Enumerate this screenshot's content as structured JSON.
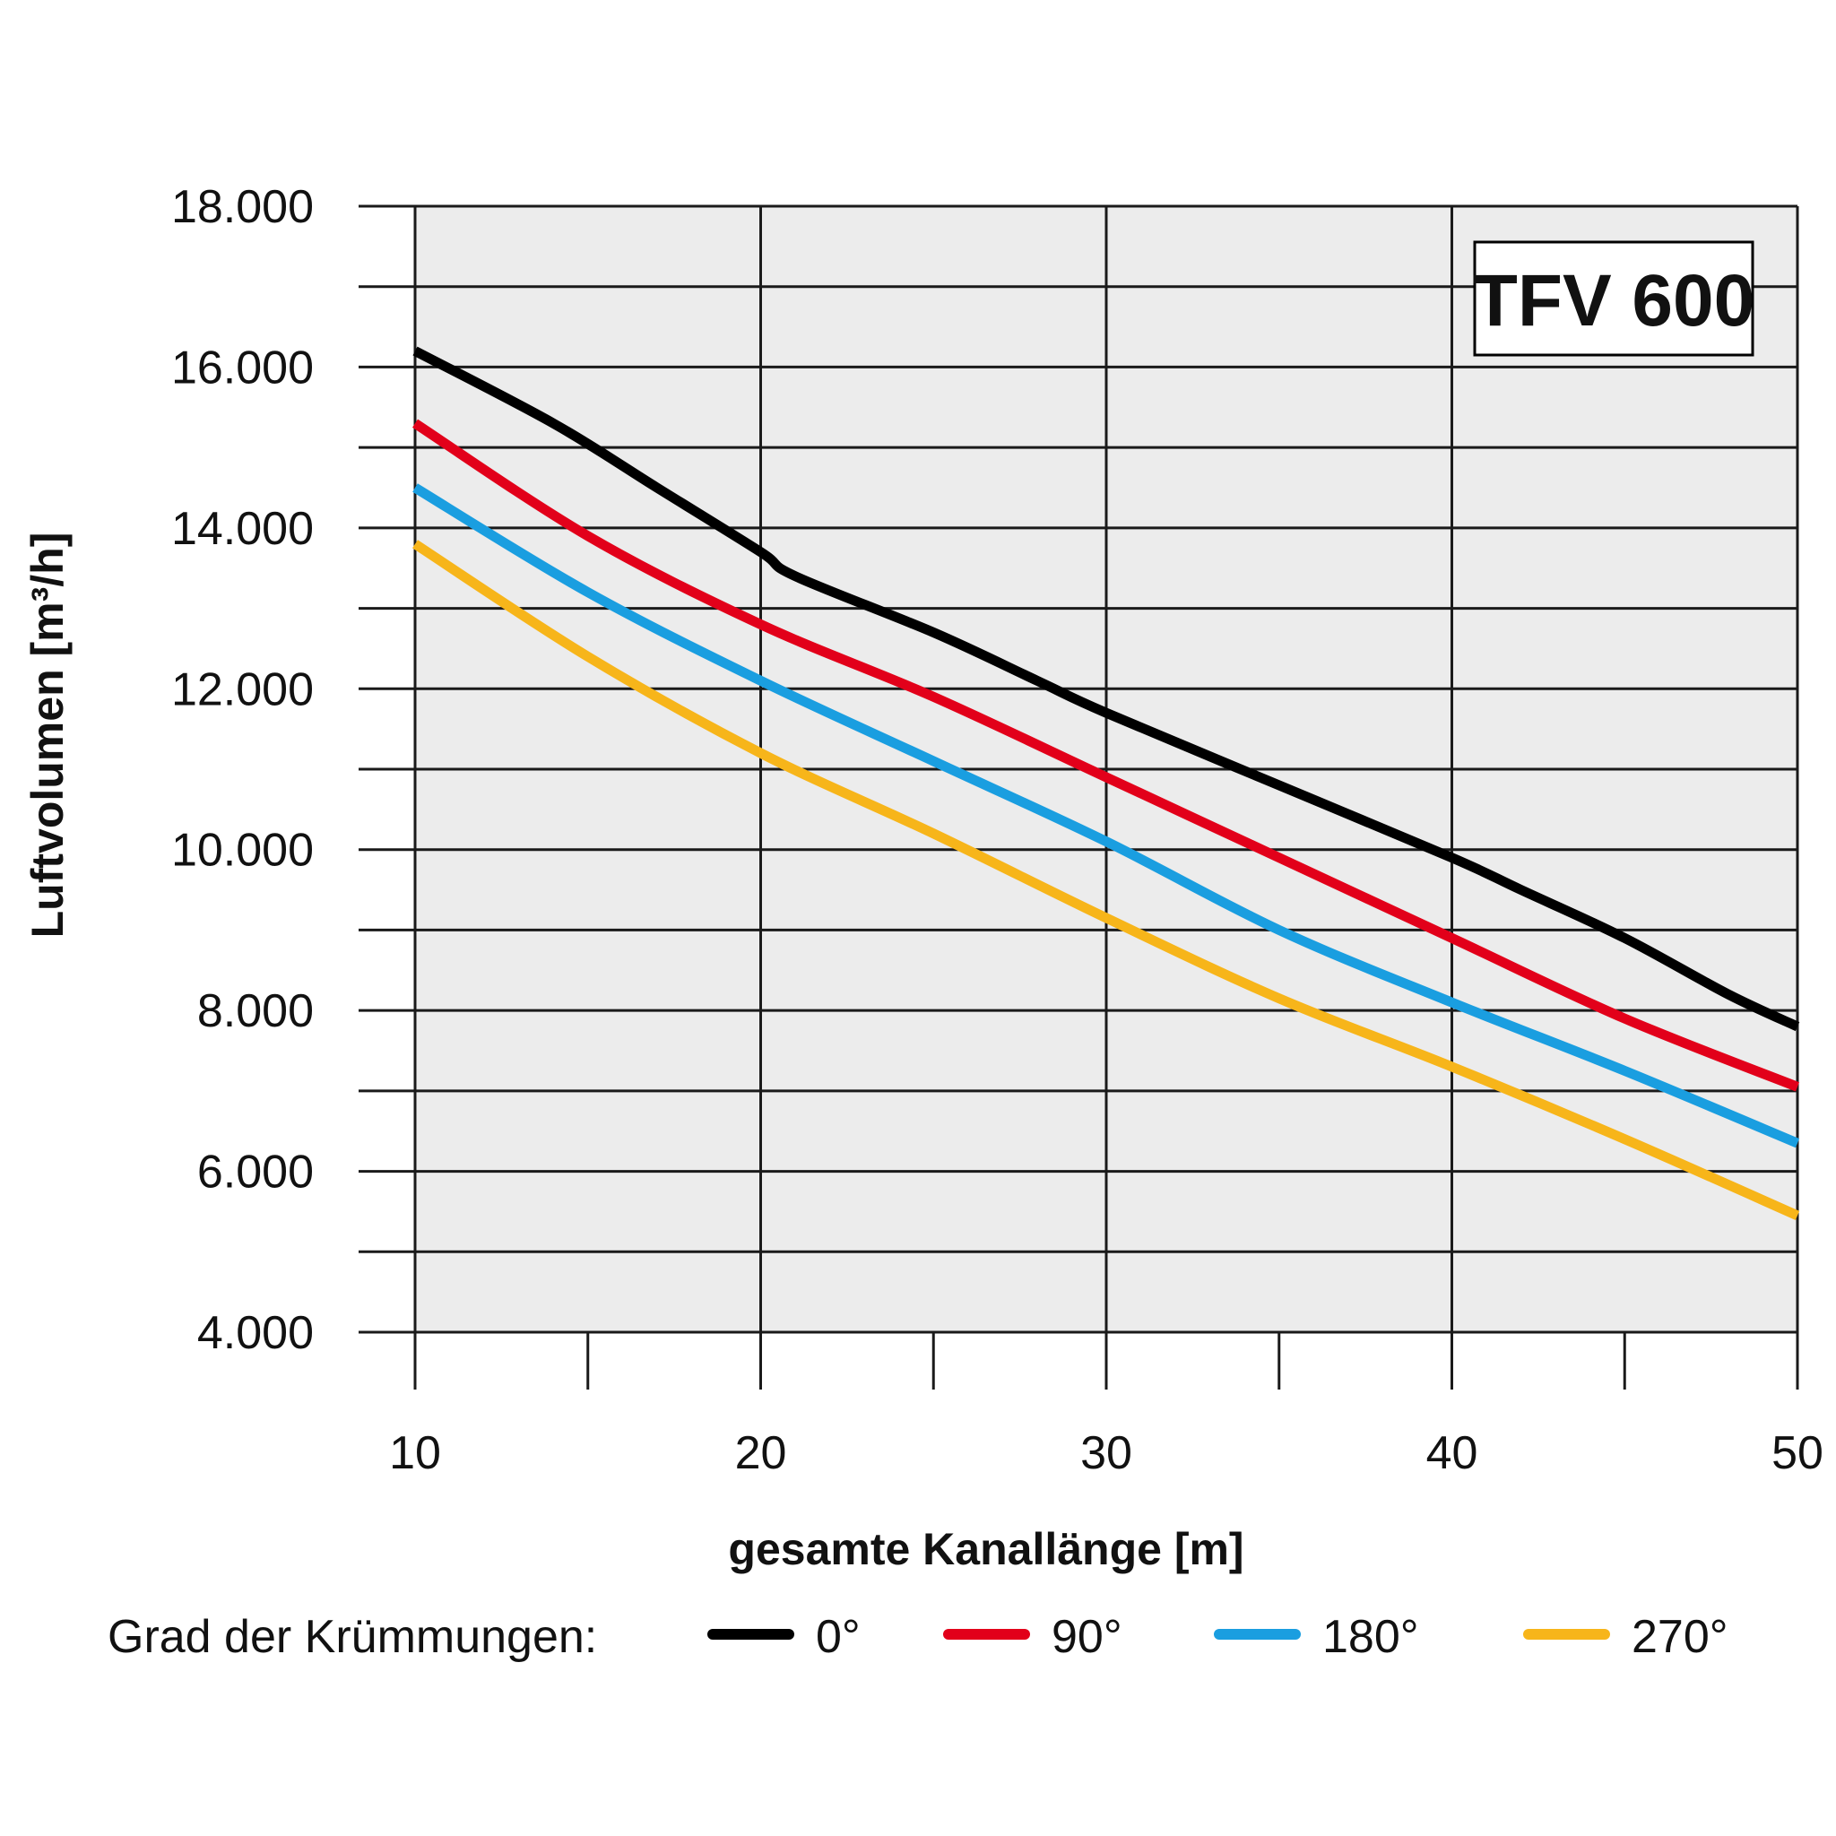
{
  "chart_data": {
    "type": "line",
    "label_box": "TFV 600",
    "xlabel": "gesamte Kanallänge [m]",
    "ylabel": "Luftvolumen [m³/h]",
    "xlim": [
      10,
      50
    ],
    "ylim": [
      4000,
      18000
    ],
    "x_ticks": [
      10,
      20,
      30,
      40,
      50
    ],
    "x_tick_labels": [
      "10",
      "20",
      "30",
      "40",
      "50"
    ],
    "x_minor_ticks": [
      15,
      25,
      35,
      45
    ],
    "y_ticks": [
      4000,
      6000,
      8000,
      10000,
      12000,
      14000,
      16000,
      18000
    ],
    "y_tick_labels": [
      "4.000",
      "6.000",
      "8.000",
      "10.000",
      "12.000",
      "14.000",
      "16.000",
      "18.000"
    ],
    "y_minor_ticks": [
      5000,
      7000,
      9000,
      11000,
      13000,
      15000,
      17000
    ],
    "grid": true,
    "legend_title": "Grad der Krümmungen:",
    "legend_position": "bottom",
    "series": [
      {
        "name": "0°",
        "color": "#000000",
        "x": [
          10,
          14,
          17,
          20,
          21,
          25,
          28,
          30,
          35,
          40,
          42,
          45,
          48,
          50
        ],
        "y": [
          16200,
          15300,
          14500,
          13700,
          13400,
          12700,
          12100,
          11700,
          10800,
          9900,
          9500,
          8900,
          8200,
          7800
        ]
      },
      {
        "name": "90°",
        "color": "#e2001a",
        "x": [
          10,
          15,
          20,
          25,
          30,
          35,
          40,
          45,
          50
        ],
        "y": [
          15300,
          13900,
          12800,
          11900,
          10900,
          9900,
          8900,
          7900,
          7050
        ]
      },
      {
        "name": "180°",
        "color": "#1a9ee0",
        "x": [
          10,
          15,
          20,
          25,
          30,
          35,
          40,
          45,
          50
        ],
        "y": [
          14500,
          13200,
          12100,
          11100,
          10100,
          9000,
          8100,
          7250,
          6350
        ]
      },
      {
        "name": "270°",
        "color": "#f7b51a",
        "x": [
          10,
          15,
          20,
          25,
          30,
          35,
          40,
          45,
          50
        ],
        "y": [
          13800,
          12400,
          11200,
          10200,
          9150,
          8150,
          7300,
          6400,
          5450
        ]
      }
    ]
  }
}
